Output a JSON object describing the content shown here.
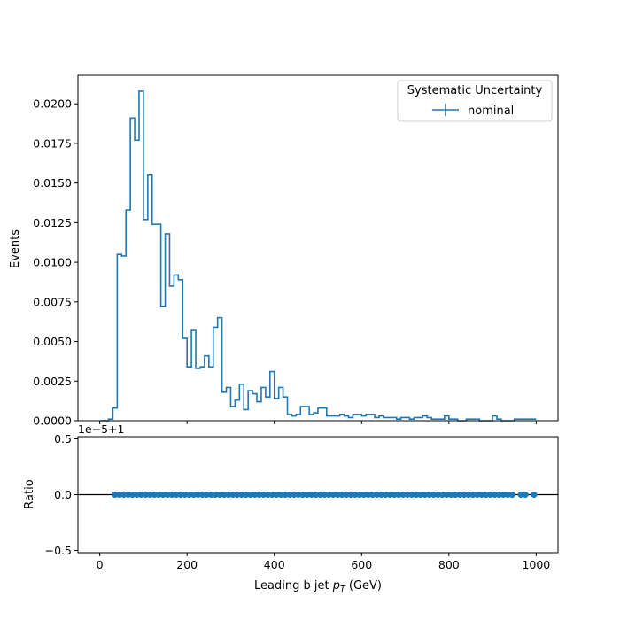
{
  "chart_data": [
    {
      "type": "histogram",
      "xlabel": "Leading b jet  p_T (GeV)",
      "ylabel": "Events",
      "xlim": [
        -50,
        1050
      ],
      "ylim": [
        0,
        0.0218
      ],
      "bin_width": 10,
      "bin_start": 0,
      "values": [
        0,
        0,
        0.0001,
        0.0008,
        0.0105,
        0.0104,
        0.0133,
        0.0191,
        0.0177,
        0.0208,
        0.0127,
        0.0155,
        0.0124,
        0.0124,
        0.0072,
        0.0118,
        0.0085,
        0.0092,
        0.0089,
        0.0052,
        0.0034,
        0.0057,
        0.0033,
        0.0034,
        0.0041,
        0.0034,
        0.0059,
        0.0065,
        0.0018,
        0.0021,
        0.0009,
        0.0013,
        0.0023,
        0.0007,
        0.0019,
        0.0017,
        0.0012,
        0.0021,
        0.0015,
        0.0031,
        0.0014,
        0.0021,
        0.0015,
        0.0004,
        0.0003,
        0.0004,
        0.0009,
        0.0009,
        0.0004,
        0.0005,
        0.0008,
        0.0008,
        0.0003,
        0.0003,
        0.0003,
        0.0004,
        0.0003,
        0.0002,
        0.0004,
        0.0004,
        0.0003,
        0.0004,
        0.0004,
        0.0002,
        0.0003,
        0.0002,
        0.0002,
        0.0002,
        0.0001,
        0.0002,
        0.0002,
        0.0001,
        0.0002,
        0.0002,
        0.0003,
        0.0002,
        0.0001,
        0.0001,
        0.0001,
        0.0003,
        0.0001,
        0.0001,
        0.0,
        0.0,
        0.0001,
        0.0001,
        0.0001,
        0,
        0,
        0,
        0.0003,
        0.0001,
        0,
        0,
        0,
        0.0001,
        0.0001,
        0.0001,
        0.0001,
        0.0001
      ],
      "legend": {
        "title": "Systematic Uncertainty",
        "entries": [
          "nominal"
        ],
        "position": "upper right"
      },
      "yticks": [
        "0.0000",
        "0.0025",
        "0.0050",
        "0.0075",
        "0.0100",
        "0.0125",
        "0.0150",
        "0.0175",
        "0.0200"
      ],
      "ytick_values": [
        0,
        0.0025,
        0.005,
        0.0075,
        0.01,
        0.0125,
        0.015,
        0.0175,
        0.02
      ],
      "color": "#1f77b4"
    },
    {
      "type": "scatter",
      "ylabel": "Ratio",
      "xlabel": "Leading b jet  p_T (GeV)",
      "offset_text": "1e−5+1",
      "xlim": [
        -50,
        1050
      ],
      "ylim": [
        -0.52,
        0.52
      ],
      "xticks": [
        "0",
        "200",
        "400",
        "600",
        "800",
        "1000"
      ],
      "xtick_values": [
        0,
        200,
        400,
        600,
        800,
        1000
      ],
      "yticks": [
        "−0.5",
        "0.0",
        "0.5"
      ],
      "ytick_values": [
        -0.5,
        0.0,
        0.5
      ],
      "x": [
        35,
        45,
        55,
        65,
        75,
        85,
        95,
        105,
        115,
        125,
        135,
        145,
        155,
        165,
        175,
        185,
        195,
        205,
        215,
        225,
        235,
        245,
        255,
        265,
        275,
        285,
        295,
        305,
        315,
        325,
        335,
        345,
        355,
        365,
        375,
        385,
        395,
        405,
        415,
        425,
        435,
        445,
        455,
        465,
        475,
        485,
        495,
        505,
        515,
        525,
        535,
        545,
        555,
        565,
        575,
        585,
        595,
        605,
        615,
        625,
        635,
        645,
        655,
        665,
        675,
        685,
        695,
        705,
        715,
        725,
        735,
        745,
        755,
        765,
        775,
        785,
        795,
        805,
        815,
        825,
        835,
        845,
        855,
        865,
        875,
        885,
        895,
        905,
        915,
        925,
        935,
        945,
        965,
        975,
        995
      ],
      "y_value": 0.0,
      "reference_line": 0.0,
      "color": "#1f77b4"
    }
  ]
}
